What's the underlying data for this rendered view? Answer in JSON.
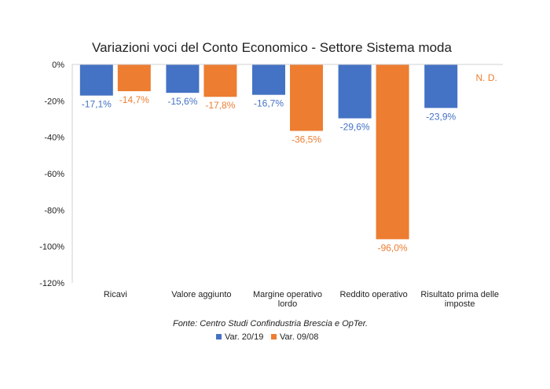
{
  "chart_data": {
    "type": "bar",
    "title": "Variazioni voci del Conto Economico - Settore Sistema moda",
    "categories": [
      [
        "Ricavi"
      ],
      [
        "Valore aggiunto"
      ],
      [
        "Margine operativo",
        "lordo"
      ],
      [
        "Reddito operativo"
      ],
      [
        "Risultato prima delle",
        "imposte"
      ]
    ],
    "series": [
      {
        "name": "Var. 20/19",
        "color": "#4472C4",
        "values": [
          -17.1,
          -15.6,
          -16.7,
          -29.6,
          -23.9
        ],
        "labels": [
          "-17,1%",
          "-15,6%",
          "-16,7%",
          "-29,6%",
          "-23,9%"
        ]
      },
      {
        "name": "Var. 09/08",
        "color": "#ED7D31",
        "values": [
          -14.7,
          -17.8,
          -36.5,
          -96.0,
          null
        ],
        "labels": [
          "-14,7%",
          "-17,8%",
          "-36,5%",
          "-96,0%",
          "N. D."
        ]
      }
    ],
    "ylim": [
      -120,
      0
    ],
    "yticks": [
      0,
      -20,
      -40,
      -60,
      -80,
      -100,
      -120
    ],
    "ytick_labels": [
      "0%",
      "-20%",
      "-40%",
      "-60%",
      "-80%",
      "-100%",
      "-120%"
    ],
    "xlabel": "",
    "ylabel": "",
    "grid": false,
    "legend_position": "bottom",
    "source": "Fonte: Centro Studi Confindustria Brescia e OpTer."
  }
}
